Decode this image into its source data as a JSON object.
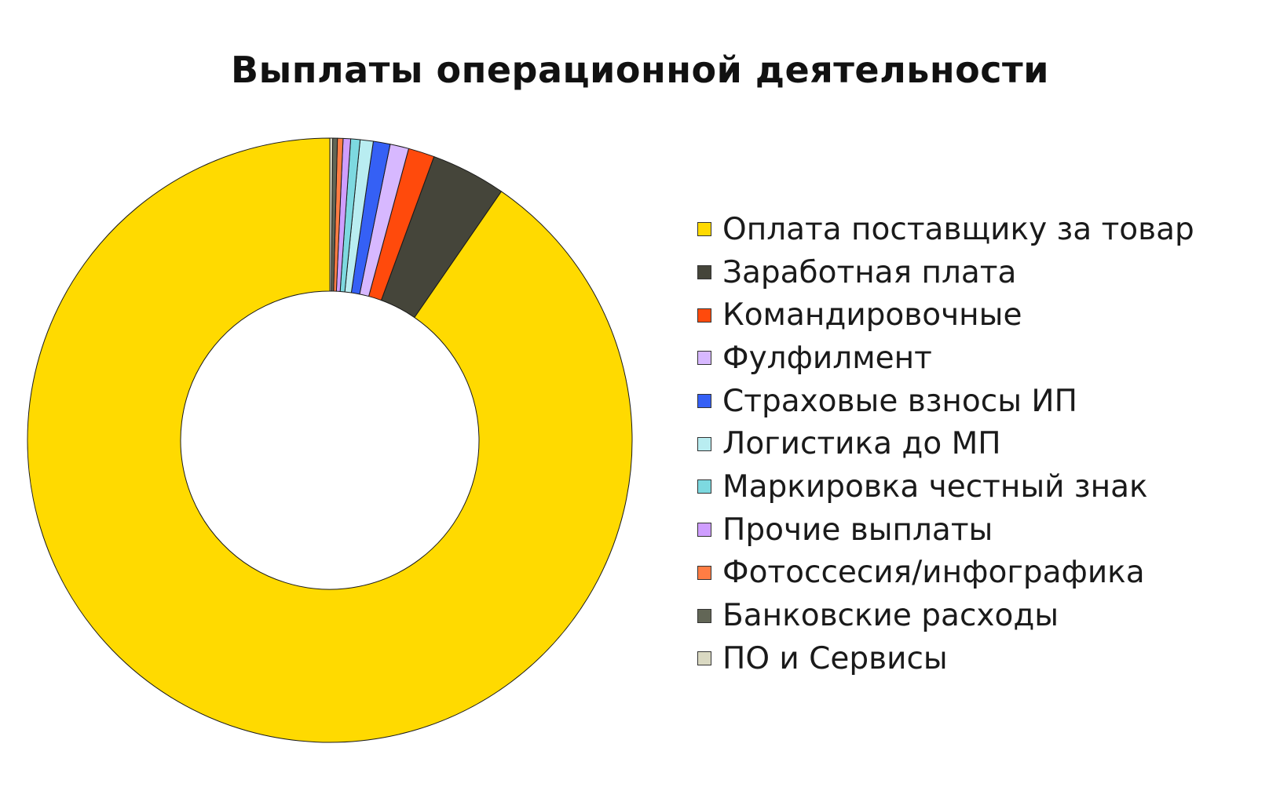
{
  "chart_data": {
    "type": "pie",
    "title": "Выплаты операционной деятельности",
    "donut": true,
    "legend_position": "right",
    "categories": [
      "Оплата поставщику за товар",
      "Заработная плата",
      "Командировочные",
      "Фулфилмент",
      "Страховые взносы ИП",
      "Логистика до МП",
      "Маркировка честный знак",
      "Прочие выплаты",
      "Фотоссесия/инфографика",
      "Банковские расходы",
      "ПО и Сервисы"
    ],
    "values": [
      90.4,
      4.0,
      1.4,
      1.0,
      0.9,
      0.7,
      0.5,
      0.4,
      0.3,
      0.25,
      0.15
    ],
    "colors": [
      "#FFDA00",
      "#45453A",
      "#FF4A0C",
      "#D7B8FF",
      "#3560F5",
      "#B9EDF1",
      "#7DD9E0",
      "#CF9EFF",
      "#FF7D44",
      "#626656",
      "#DAD9C2"
    ]
  }
}
